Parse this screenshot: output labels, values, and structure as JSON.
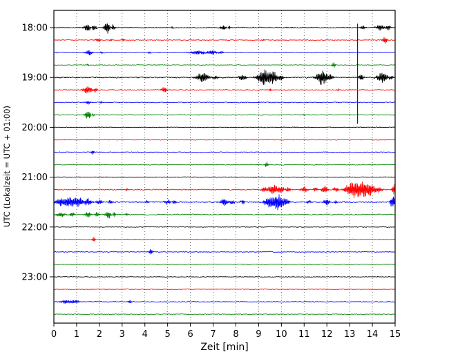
{
  "chart_data": {
    "type": "line",
    "title": "",
    "subtitle": "",
    "xlabel": "Zeit  [min]",
    "ylabel": "UTC (Lokalzeit = UTC + 01:00)",
    "xlim": [
      0,
      15
    ],
    "xticks": [
      0,
      1,
      2,
      3,
      4,
      5,
      6,
      7,
      8,
      9,
      10,
      11,
      12,
      13,
      14,
      15
    ],
    "yticks": [
      {
        "label": "18:00",
        "trace": 0
      },
      {
        "label": "19:00",
        "trace": 4
      },
      {
        "label": "20:00",
        "trace": 8
      },
      {
        "label": "21:00",
        "trace": 12
      },
      {
        "label": "22:00",
        "trace": 16
      },
      {
        "label": "23:00",
        "trace": 20
      }
    ],
    "grid": true,
    "legend": "none",
    "minutes_per_line": 15,
    "colors": {
      "black": "#000000",
      "red": "#ff0000",
      "blue": "#0000ff",
      "green": "#008000"
    },
    "traces": [
      {
        "start": "18:00",
        "color": "black",
        "noise": 1.1,
        "events": [
          [
            1.5,
            0.12,
            6
          ],
          [
            1.75,
            0.08,
            5
          ],
          [
            2.35,
            0.1,
            9
          ],
          [
            2.6,
            0.07,
            5
          ],
          [
            5.2,
            0.04,
            2
          ],
          [
            7.45,
            0.1,
            4
          ],
          [
            7.7,
            0.05,
            2.5
          ],
          [
            13.6,
            0.08,
            3
          ],
          [
            14.35,
            0.12,
            5
          ],
          [
            14.7,
            0.08,
            4
          ]
        ]
      },
      {
        "start": "18:15",
        "color": "red",
        "noise": 0.9,
        "events": [
          [
            1.95,
            0.08,
            3
          ],
          [
            2.5,
            0.04,
            2
          ],
          [
            3.05,
            0.04,
            2.5
          ],
          [
            9.2,
            0.04,
            1.5
          ],
          [
            14.55,
            0.07,
            6
          ]
        ]
      },
      {
        "start": "18:30",
        "color": "blue",
        "noise": 0.9,
        "events": [
          [
            1.55,
            0.1,
            4
          ],
          [
            2.1,
            0.04,
            2
          ],
          [
            4.2,
            0.04,
            2
          ],
          [
            6.35,
            0.25,
            3
          ],
          [
            6.95,
            0.15,
            3
          ],
          [
            7.35,
            0.08,
            2
          ]
        ]
      },
      {
        "start": "18:45",
        "color": "green",
        "noise": 0.8,
        "events": [
          [
            1.5,
            0.04,
            1.5
          ],
          [
            12.3,
            0.05,
            4.5
          ]
        ]
      },
      {
        "start": "19:00",
        "color": "black",
        "noise": 1.4,
        "events": [
          [
            6.55,
            0.18,
            8
          ],
          [
            7.1,
            0.08,
            3
          ],
          [
            8.3,
            0.12,
            5
          ],
          [
            9.25,
            0.2,
            13
          ],
          [
            9.6,
            0.15,
            10
          ],
          [
            9.95,
            0.1,
            5
          ],
          [
            11.8,
            0.18,
            11
          ],
          [
            12.15,
            0.08,
            5
          ],
          [
            13.5,
            0.08,
            5
          ],
          [
            14.45,
            0.15,
            9
          ],
          [
            14.8,
            0.08,
            4
          ]
        ],
        "vline": {
          "x": 13.35,
          "up": 78,
          "down": 67
        }
      },
      {
        "start": "19:15",
        "color": "red",
        "noise": 1.1,
        "events": [
          [
            1.5,
            0.15,
            6
          ],
          [
            1.8,
            0.08,
            4
          ],
          [
            4.85,
            0.08,
            5
          ],
          [
            9.5,
            0.04,
            2
          ],
          [
            12.5,
            0.04,
            2
          ]
        ]
      },
      {
        "start": "19:30",
        "color": "blue",
        "noise": 0.9,
        "events": [
          [
            1.5,
            0.07,
            3
          ],
          [
            2.05,
            0.04,
            2
          ],
          [
            9.0,
            0.03,
            1.5
          ]
        ]
      },
      {
        "start": "19:45",
        "color": "green",
        "noise": 0.9,
        "events": [
          [
            1.5,
            0.09,
            7
          ],
          [
            1.72,
            0.05,
            3
          ],
          [
            11.0,
            0.03,
            2
          ]
        ]
      },
      {
        "start": "20:00",
        "color": "black",
        "noise": 0.8,
        "events": []
      },
      {
        "start": "20:15",
        "color": "red",
        "noise": 0.8,
        "events": []
      },
      {
        "start": "20:30",
        "color": "blue",
        "noise": 0.9,
        "events": [
          [
            1.7,
            0.05,
            3
          ]
        ]
      },
      {
        "start": "20:45",
        "color": "green",
        "noise": 0.8,
        "events": [
          [
            9.35,
            0.05,
            5
          ]
        ]
      },
      {
        "start": "21:00",
        "color": "black",
        "noise": 0.8,
        "events": []
      },
      {
        "start": "21:15",
        "color": "red",
        "noise": 1.1,
        "events": [
          [
            3.2,
            0.04,
            2
          ],
          [
            9.3,
            0.12,
            5
          ],
          [
            9.6,
            0.18,
            8
          ],
          [
            9.95,
            0.12,
            6
          ],
          [
            10.3,
            0.08,
            4
          ],
          [
            11.0,
            0.1,
            5
          ],
          [
            11.5,
            0.07,
            4
          ],
          [
            11.9,
            0.1,
            6
          ],
          [
            12.4,
            0.08,
            4
          ],
          [
            13.1,
            0.22,
            10
          ],
          [
            13.5,
            0.28,
            11
          ],
          [
            13.9,
            0.18,
            8
          ],
          [
            14.3,
            0.1,
            4
          ],
          [
            14.95,
            0.06,
            9
          ]
        ]
      },
      {
        "start": "21:30",
        "color": "blue",
        "noise": 1.4,
        "events": [
          [
            0.3,
            0.18,
            5
          ],
          [
            0.7,
            0.22,
            7
          ],
          [
            1.1,
            0.18,
            6
          ],
          [
            1.5,
            0.12,
            5
          ],
          [
            2.0,
            0.1,
            4
          ],
          [
            2.5,
            0.07,
            3
          ],
          [
            4.1,
            0.04,
            3
          ],
          [
            5.0,
            0.09,
            4
          ],
          [
            5.3,
            0.07,
            3
          ],
          [
            7.5,
            0.13,
            6
          ],
          [
            7.8,
            0.09,
            4
          ],
          [
            8.3,
            0.07,
            3
          ],
          [
            9.5,
            0.18,
            9
          ],
          [
            9.85,
            0.22,
            12
          ],
          [
            10.2,
            0.12,
            5
          ],
          [
            11.2,
            0.07,
            3
          ],
          [
            12.0,
            0.09,
            6
          ],
          [
            12.4,
            0.05,
            3
          ],
          [
            14.9,
            0.08,
            10
          ]
        ]
      },
      {
        "start": "21:45",
        "color": "green",
        "noise": 1.1,
        "events": [
          [
            0.3,
            0.13,
            4
          ],
          [
            0.8,
            0.09,
            3
          ],
          [
            1.5,
            0.09,
            5
          ],
          [
            1.9,
            0.07,
            4
          ],
          [
            2.4,
            0.09,
            6
          ],
          [
            2.65,
            0.06,
            4
          ],
          [
            3.2,
            0.04,
            2
          ]
        ]
      },
      {
        "start": "22:00",
        "color": "black",
        "noise": 0.8,
        "events": []
      },
      {
        "start": "22:15",
        "color": "red",
        "noise": 0.8,
        "events": [
          [
            1.75,
            0.05,
            4
          ]
        ]
      },
      {
        "start": "22:30",
        "color": "blue",
        "noise": 0.9,
        "events": [
          [
            4.25,
            0.07,
            4
          ]
        ]
      },
      {
        "start": "22:45",
        "color": "green",
        "noise": 0.8,
        "events": []
      },
      {
        "start": "23:00",
        "color": "black",
        "noise": 0.8,
        "events": []
      },
      {
        "start": "23:15",
        "color": "red",
        "noise": 0.8,
        "events": []
      },
      {
        "start": "23:30",
        "color": "blue",
        "noise": 0.9,
        "events": [
          [
            0.55,
            0.18,
            3
          ],
          [
            0.95,
            0.12,
            2.5
          ],
          [
            3.35,
            0.05,
            3
          ]
        ]
      },
      {
        "start": "23:45",
        "color": "green",
        "noise": 0.8,
        "events": []
      }
    ]
  }
}
